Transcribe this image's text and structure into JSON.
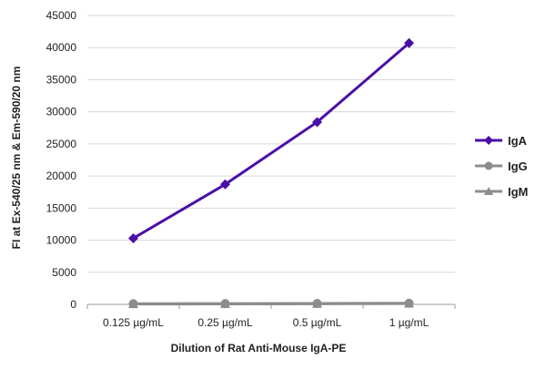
{
  "chart_data": {
    "type": "line",
    "title": "",
    "xlabel": "Dilution of Rat Anti-Mouse IgA-PE",
    "ylabel": "FI at Ex-540/25 nm & Em-590/20 nm",
    "categories": [
      "0.125 µg/mL",
      "0.25 µg/mL",
      "0.5 µg/mL",
      "1 µg/mL"
    ],
    "ylim": [
      0,
      45000
    ],
    "yticks": [
      0,
      5000,
      10000,
      15000,
      20000,
      25000,
      30000,
      35000,
      40000,
      45000
    ],
    "grid": true,
    "legend_position": "right",
    "series": [
      {
        "name": "IgA",
        "values": [
          10300,
          18700,
          28400,
          40700
        ],
        "color": "#4b0fa8",
        "marker": "diamond"
      },
      {
        "name": "IgG",
        "values": [
          100,
          120,
          140,
          180
        ],
        "color": "#8c8c8c",
        "marker": "circle"
      },
      {
        "name": "IgM",
        "values": [
          60,
          70,
          90,
          120
        ],
        "color": "#8c8c8c",
        "marker": "triangle"
      }
    ]
  }
}
